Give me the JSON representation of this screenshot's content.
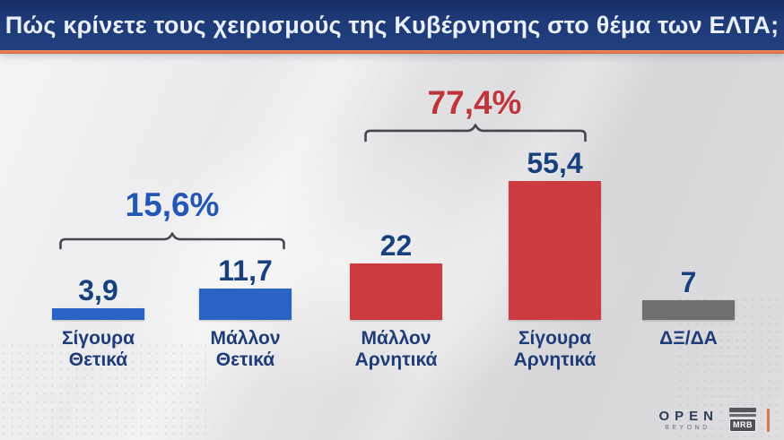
{
  "header": {
    "title": "Πώς κρίνετε τους χειρισμούς της Κυβέρνησης στο θέμα των ΕΛΤΑ;"
  },
  "chart_data": {
    "type": "bar",
    "title": "Πώς κρίνετε τους χειρισμούς της Κυβέρνησης στο θέμα των ΕΛΤΑ;",
    "categories": [
      "Σίγουρα Θετικά",
      "Μάλλον Θετικά",
      "Μάλλον Αρνητικά",
      "Σίγουρα Αρνητικά",
      "ΔΞ/ΔΑ"
    ],
    "values": [
      3.9,
      11.7,
      22,
      55.4,
      7
    ],
    "value_labels": [
      "3,9",
      "11,7",
      "22",
      "55,4",
      "7"
    ],
    "bar_colors": [
      "#2963C4",
      "#2963C4",
      "#CB3B40",
      "#CB3B40",
      "#6F6F6F"
    ],
    "groups": [
      {
        "label": "15,6%",
        "value": 15.6,
        "members": [
          "Σίγουρα Θετικά",
          "Μάλλον Θετικά"
        ],
        "color": "#2357B5"
      },
      {
        "label": "77,4%",
        "value": 77.4,
        "members": [
          "Μάλλον Αρνητικά",
          "Σίγουρα Αρνητικά"
        ],
        "color": "#BE363C"
      }
    ],
    "unit": "%",
    "xlabel": "",
    "ylabel": "",
    "ylim": [
      0,
      60
    ],
    "grid": false,
    "legend": false
  },
  "colors": {
    "header_bg": "#1E3A78",
    "accent_orange": "#DD7350",
    "value_text": "#17417E",
    "category_text": "#1E3C78",
    "bracket": "#45474E",
    "background_light": "#EFEFF1",
    "background_dark": "#D6D6D8"
  },
  "footer": {
    "open_label": "OPEN",
    "open_tagline": "BEYOND",
    "mrb_label": "MRB"
  }
}
